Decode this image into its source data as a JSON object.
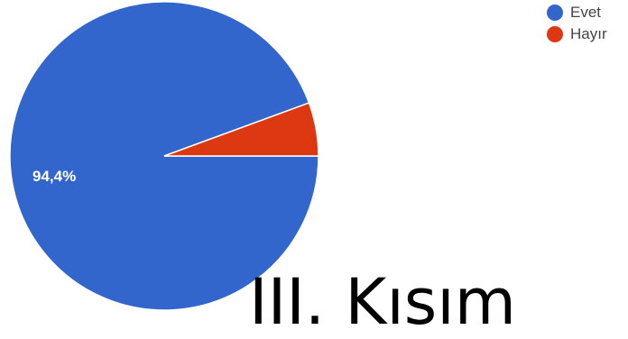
{
  "chart_data": {
    "type": "pie",
    "slices": [
      {
        "label": "Evet",
        "value": 94.4,
        "color": "#3366cc",
        "data_label": "94,4%"
      },
      {
        "label": "Hayır",
        "value": 5.6,
        "color": "#dc3912",
        "data_label": ""
      }
    ],
    "legend_position": "top-right"
  },
  "footer_text": "III. Kısım"
}
